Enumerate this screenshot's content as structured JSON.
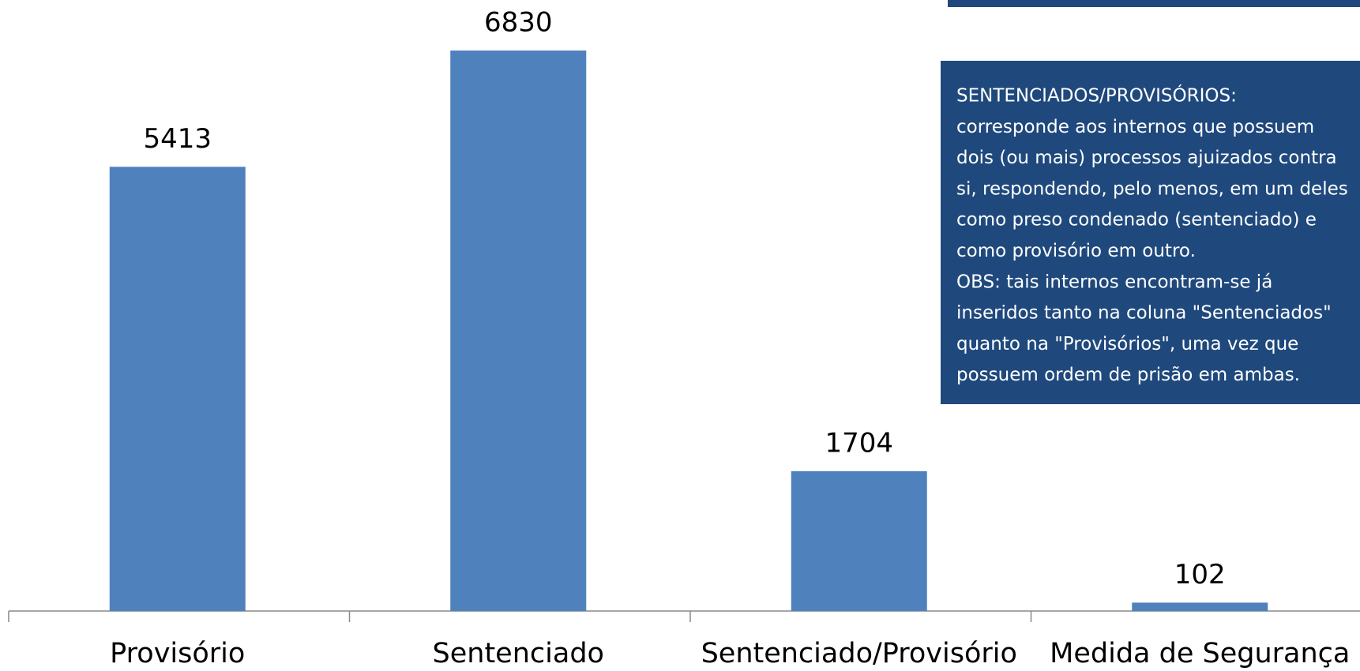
{
  "chart_data": {
    "type": "bar",
    "categories": [
      "Provisório",
      "Sentenciado",
      "Sentenciado/Provisório",
      "Medida de Segurança"
    ],
    "values": [
      5413,
      6830,
      1704,
      102
    ],
    "color": "#4f81bd",
    "annotation": [
      "SENTENCIADOS/PROVISÓRIOS:",
      "corresponde aos internos que possuem",
      "dois (ou mais) processos ajuizados contra",
      "si, respondendo, pelo menos, em um deles",
      "como preso condenado (sentenciado) e",
      "como provisório em outro.",
      "OBS: tais internos encontram-se já",
      "inseridos tanto na coluna \"Sentenciados\"",
      "quanto na \"Provisórios\", uma vez que",
      "possuem ordem de prisão em ambas."
    ]
  }
}
